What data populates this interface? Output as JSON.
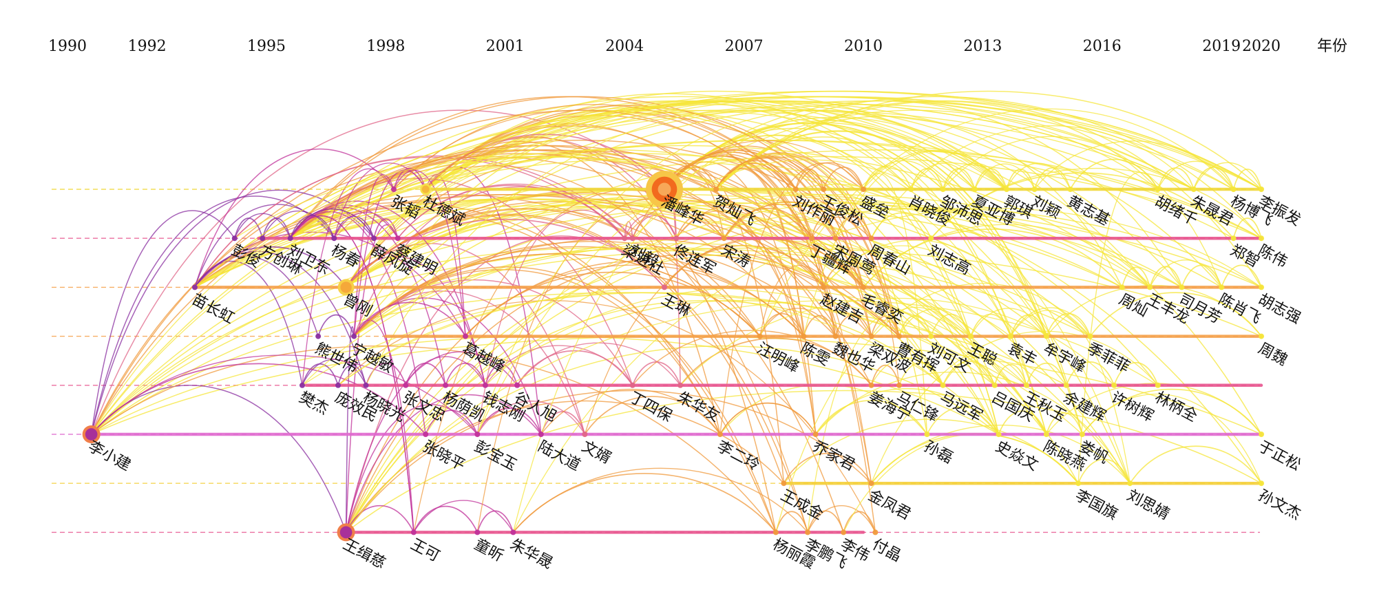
{
  "years": [
    "1990",
    "1992",
    "1995",
    "1998",
    "2001",
    "2004",
    "2007",
    "2010",
    "2013",
    "2016",
    "2019",
    "2020"
  ],
  "year_unit_label": "年份",
  "colors": {
    "purple": "#8a2fa0",
    "magenta": "#c0329a",
    "rose": "#e06688",
    "orange": "#f09a3c",
    "yellow": "#f5e63a",
    "node_big": "#f06a1e",
    "line_pink": "#e8558f",
    "line_orange": "#f5a04a",
    "line_yellow": "#f0d83a"
  },
  "lanes": [
    {
      "row": 0,
      "color": "#f0d83a",
      "start_year": 1999,
      "end_year": 2020
    },
    {
      "row": 1,
      "color": "#e8558f",
      "start_year": 1994.8,
      "end_year": 2020
    },
    {
      "row": 2,
      "color": "#f5a04a",
      "start_year": 1993.2,
      "end_year": 2020
    },
    {
      "row": 3,
      "color": "#f5a04a",
      "start_year": 1998,
      "end_year": 2020
    },
    {
      "row": 4,
      "color": "#e8558f",
      "start_year": 1996,
      "end_year": 2020
    },
    {
      "row": 5,
      "color": "#e06acf",
      "start_year": 1990.6,
      "end_year": 2020
    },
    {
      "row": 6,
      "color": "#f5d03a",
      "start_year": 2008,
      "end_year": 2020
    },
    {
      "row": 7,
      "color": "#e8558f",
      "start_year": 1997,
      "end_year": 2010
    }
  ],
  "authors": [
    {
      "name": "杜德斌",
      "year": 1999,
      "row": 0
    },
    {
      "name": "张韬",
      "year": 1998.2,
      "row": 0
    },
    {
      "name": "潘峰华",
      "year": 2005,
      "row": 0
    },
    {
      "name": "贺灿飞",
      "year": 2006.3,
      "row": 0
    },
    {
      "name": "王俊松",
      "year": 2009,
      "row": 0
    },
    {
      "name": "刘作丽",
      "year": 2008.3,
      "row": 0
    },
    {
      "name": "盛垒",
      "year": 2010,
      "row": 0
    },
    {
      "name": "肖晓俊",
      "year": 2011.2,
      "row": 0
    },
    {
      "name": "邹沛思",
      "year": 2012,
      "row": 0
    },
    {
      "name": "夏亚博",
      "year": 2012.8,
      "row": 0
    },
    {
      "name": "郭琪",
      "year": 2013.6,
      "row": 0
    },
    {
      "name": "刘颖",
      "year": 2014.3,
      "row": 0
    },
    {
      "name": "黄志基",
      "year": 2015.2,
      "row": 0
    },
    {
      "name": "胡绪千",
      "year": 2017.4,
      "row": 0
    },
    {
      "name": "朱晟君",
      "year": 2018.3,
      "row": 0
    },
    {
      "name": "杨博飞",
      "year": 2019.3,
      "row": 0
    },
    {
      "name": "李振发",
      "year": 2020,
      "row": 0
    },
    {
      "name": "彭俊",
      "year": 1994.2,
      "row": 1
    },
    {
      "name": "方创琳",
      "year": 1994.9,
      "row": 1
    },
    {
      "name": "刘卫东",
      "year": 1995.6,
      "row": 1
    },
    {
      "name": "杨春",
      "year": 1996.7,
      "row": 1
    },
    {
      "name": "薛凤旋",
      "year": 1997.7,
      "row": 1
    },
    {
      "name": "蔡建明",
      "year": 1998.3,
      "row": 1
    },
    {
      "name": "梁进社",
      "year": 2004,
      "row": 1
    },
    {
      "name": "宋涛",
      "year": 2006.5,
      "row": 1
    },
    {
      "name": "佟连军",
      "year": 2005.3,
      "row": 1
    },
    {
      "name": "刘毅",
      "year": 2004.2,
      "row": 1
    },
    {
      "name": "丁疆辉",
      "year": 2008.7,
      "row": 1
    },
    {
      "name": "宋周莺",
      "year": 2009.3,
      "row": 1
    },
    {
      "name": "周春山",
      "year": 2010.2,
      "row": 1
    },
    {
      "name": "刘志高",
      "year": 2011.7,
      "row": 1
    },
    {
      "name": "郑智",
      "year": 2019.3,
      "row": 1
    },
    {
      "name": "陈伟",
      "year": 2020,
      "row": 1
    },
    {
      "name": "苗长虹",
      "year": 1993.2,
      "row": 2
    },
    {
      "name": "曾刚",
      "year": 1997,
      "row": 2
    },
    {
      "name": "王琳",
      "year": 2005,
      "row": 2
    },
    {
      "name": "赵建吉",
      "year": 2009,
      "row": 2
    },
    {
      "name": "毛睿奕",
      "year": 2010,
      "row": 2
    },
    {
      "name": "周灿",
      "year": 2016.5,
      "row": 2
    },
    {
      "name": "王丰龙",
      "year": 2017.2,
      "row": 2
    },
    {
      "name": "司月芳",
      "year": 2018,
      "row": 2
    },
    {
      "name": "陈肖飞",
      "year": 2019,
      "row": 2
    },
    {
      "name": "胡志强",
      "year": 2020,
      "row": 2
    },
    {
      "name": "宁越敏",
      "year": 1997.2,
      "row": 3
    },
    {
      "name": "熊世伟",
      "year": 1996.3,
      "row": 3
    },
    {
      "name": "葛越峰",
      "year": 2000,
      "row": 3
    },
    {
      "name": "汪明峰",
      "year": 2007.4,
      "row": 3
    },
    {
      "name": "陈雯",
      "year": 2008.5,
      "row": 3
    },
    {
      "name": "魏也华",
      "year": 2009.3,
      "row": 3
    },
    {
      "name": "梁双波",
      "year": 2010.2,
      "row": 3
    },
    {
      "name": "曹有挥",
      "year": 2010.9,
      "row": 3
    },
    {
      "name": "刘可文",
      "year": 2011.7,
      "row": 3
    },
    {
      "name": "王聪",
      "year": 2012.7,
      "row": 3
    },
    {
      "name": "袁丰",
      "year": 2013.7,
      "row": 3
    },
    {
      "name": "牟宇峰",
      "year": 2014.6,
      "row": 3
    },
    {
      "name": "季菲菲",
      "year": 2015.7,
      "row": 3
    },
    {
      "name": "周魏",
      "year": 2020,
      "row": 3
    },
    {
      "name": "樊杰",
      "year": 1995.9,
      "row": 4
    },
    {
      "name": "庞效民",
      "year": 1996.8,
      "row": 4
    },
    {
      "name": "杨晓光",
      "year": 1997.5,
      "row": 4
    },
    {
      "name": "张文忠",
      "year": 1998.5,
      "row": 4
    },
    {
      "name": "杨荫凯",
      "year": 1999.5,
      "row": 4
    },
    {
      "name": "钱志刚",
      "year": 2000.5,
      "row": 4
    },
    {
      "name": "谷人旭",
      "year": 2001.3,
      "row": 4
    },
    {
      "name": "丁四保",
      "year": 2004.2,
      "row": 4
    },
    {
      "name": "朱华友",
      "year": 2005.4,
      "row": 4
    },
    {
      "name": "姜海宁",
      "year": 2010.2,
      "row": 4
    },
    {
      "name": "马仁锋",
      "year": 2010.9,
      "row": 4
    },
    {
      "name": "马远军",
      "year": 2012,
      "row": 4
    },
    {
      "name": "吕国庆",
      "year": 2013.3,
      "row": 4
    },
    {
      "name": "王秋玉",
      "year": 2014.1,
      "row": 4
    },
    {
      "name": "余建辉",
      "year": 2015.1,
      "row": 4
    },
    {
      "name": "许树辉",
      "year": 2016.3,
      "row": 4
    },
    {
      "name": "林柄全",
      "year": 2017.4,
      "row": 4
    },
    {
      "name": "李小建",
      "year": 1990.6,
      "row": 5
    },
    {
      "name": "张晓平",
      "year": 1999,
      "row": 5
    },
    {
      "name": "彭宝玉",
      "year": 2000.3,
      "row": 5
    },
    {
      "name": "陆大道",
      "year": 2001.9,
      "row": 5
    },
    {
      "name": "文婿",
      "year": 2003,
      "row": 5
    },
    {
      "name": "李二玲",
      "year": 2006.4,
      "row": 5
    },
    {
      "name": "乔家君",
      "year": 2008.8,
      "row": 5
    },
    {
      "name": "孙磊",
      "year": 2011.6,
      "row": 5
    },
    {
      "name": "史焱文",
      "year": 2013.4,
      "row": 5
    },
    {
      "name": "陈晓燕",
      "year": 2014.6,
      "row": 5
    },
    {
      "name": "娄帆",
      "year": 2015.5,
      "row": 5
    },
    {
      "name": "于正松",
      "year": 2020,
      "row": 5
    },
    {
      "name": "王成金",
      "year": 2008,
      "row": 6
    },
    {
      "name": "金凤君",
      "year": 2010.2,
      "row": 6
    },
    {
      "name": "李国旗",
      "year": 2015.4,
      "row": 6
    },
    {
      "name": "刘思婧",
      "year": 2016.7,
      "row": 6
    },
    {
      "name": "孙文杰",
      "year": 2020,
      "row": 6
    },
    {
      "name": "王缉慈",
      "year": 1997,
      "row": 7
    },
    {
      "name": "王可",
      "year": 1998.7,
      "row": 7
    },
    {
      "name": "童昕",
      "year": 2000.3,
      "row": 7
    },
    {
      "name": "朱华晟",
      "year": 2001.2,
      "row": 7
    },
    {
      "name": "杨丽霞",
      "year": 2007.8,
      "row": 7
    },
    {
      "name": "李鹏飞",
      "year": 2008.6,
      "row": 7
    },
    {
      "name": "李伟",
      "year": 2009.5,
      "row": 7
    },
    {
      "name": "付晶",
      "year": 2010.3,
      "row": 7
    }
  ],
  "big_nodes": [
    {
      "author": "李小建",
      "color": "#a8309a",
      "rim": "#f07f4a",
      "size": "large"
    },
    {
      "author": "潘峰华",
      "color": "#f26a1e",
      "rim": "#f7c648",
      "size": "huge"
    },
    {
      "author": "曾刚",
      "color": "#f5a83a",
      "rim": "#f7d048",
      "size": "medium"
    },
    {
      "author": "王缉慈",
      "color": "#a8309a",
      "rim": "#f07f4a",
      "size": "large"
    },
    {
      "author": "杜德斌",
      "color": "#f5b83a",
      "rim": "#f7e048",
      "size": "small"
    }
  ]
}
